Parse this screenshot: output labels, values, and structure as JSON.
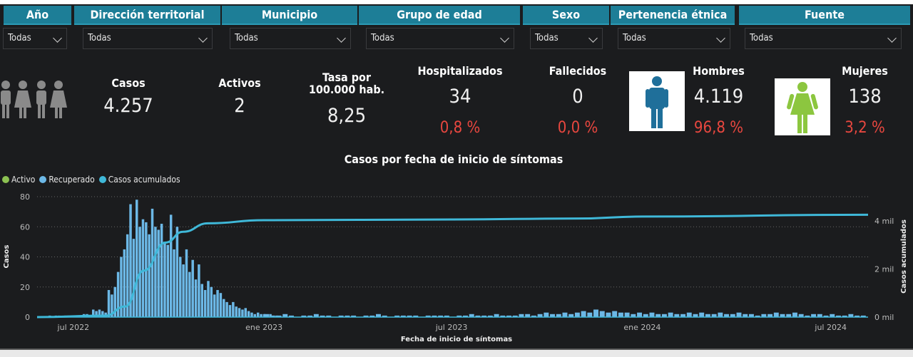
{
  "filters": [
    {
      "label": "Año",
      "value": "Todas"
    },
    {
      "label": "Dirección territorial",
      "value": "Todas"
    },
    {
      "label": "Municipio",
      "value": "Todas"
    },
    {
      "label": "Grupo de edad",
      "value": "Todas"
    },
    {
      "label": "Sexo",
      "value": "Todas"
    },
    {
      "label": "Pertenencia étnica",
      "value": "Todas"
    },
    {
      "label": "Fuente",
      "value": "Todas"
    }
  ],
  "kpis": {
    "casos": {
      "label": "Casos",
      "value": "4.257"
    },
    "activos": {
      "label": "Activos",
      "value": "2"
    },
    "tasa": {
      "label": "Tasa por 100.000 hab.",
      "value": "8,25"
    },
    "hospitalizados": {
      "label": "Hospitalizados",
      "value": "34",
      "pct": "0,8 %"
    },
    "fallecidos": {
      "label": "Fallecidos",
      "value": "0",
      "pct": "0,0 %"
    },
    "hombres": {
      "label": "Hombres",
      "value": "4.119",
      "pct": "96,8 %"
    },
    "mujeres": {
      "label": "Mujeres",
      "value": "138",
      "pct": "3,2 %"
    }
  },
  "colors": {
    "header": "#1d7e97",
    "activo": "#8cc152",
    "recuperado": "#6cb8e6",
    "acumulados": "#3fb8d8",
    "pct": "#e8473f",
    "male": "#1f6f9a",
    "female": "#8cc63f"
  },
  "chart_data": {
    "type": "bar",
    "title": "Casos por fecha de inicio de síntomas",
    "xlabel": "Fecha de inicio de síntomas",
    "ylabel": "Casos",
    "y2label": "Casos acumulados",
    "ylim": [
      0,
      80
    ],
    "yticks": [
      "0",
      "20",
      "40",
      "60",
      "80"
    ],
    "y2lim": [
      0,
      5000
    ],
    "y2ticks": [
      "0 mil",
      "2 mil",
      "4 mil"
    ],
    "xrange": [
      "2022-05-27",
      "2024-08-06"
    ],
    "xticks": [
      {
        "date": "2022-07-01",
        "label": "jul 2022"
      },
      {
        "date": "2023-01-01",
        "label": "ene 2023"
      },
      {
        "date": "2023-07-01",
        "label": "jul 2023"
      },
      {
        "date": "2024-01-01",
        "label": "ene 2024"
      },
      {
        "date": "2024-07-01",
        "label": "jul 2024"
      }
    ],
    "legend": [
      "Activo",
      "Recuperado",
      "Casos acumulados"
    ],
    "legend_position": "top-left",
    "grid": true,
    "recuperado": {
      "start": "2022-06-01",
      "step_days": 3,
      "values": [
        0,
        0,
        1,
        0,
        1,
        1,
        0,
        1,
        1,
        1,
        1,
        1,
        1,
        2,
        2,
        1,
        5,
        4,
        5,
        4,
        3,
        18,
        15,
        20,
        30,
        40,
        45,
        55,
        75,
        52,
        78,
        60,
        65,
        63,
        55,
        72,
        60,
        58,
        62,
        50,
        48,
        68,
        45,
        60,
        40,
        35,
        45,
        30,
        38,
        25,
        35,
        22,
        18,
        24,
        20,
        15,
        18,
        16,
        12,
        10,
        8,
        10,
        7,
        6,
        5,
        6,
        4,
        3,
        2,
        3,
        2,
        2,
        1,
        2,
        1,
        1
      ]
    },
    "recuperado_tail": {
      "start": "2023-01-01",
      "step_days": 6,
      "values": [
        2,
        1,
        1,
        2,
        1,
        0,
        1,
        1,
        2,
        1,
        1,
        0,
        1,
        1,
        1,
        0,
        1,
        1,
        2,
        1,
        0,
        1,
        1,
        1,
        1,
        0,
        1,
        1,
        1,
        1,
        0,
        1,
        1,
        2,
        1,
        1,
        1,
        2,
        1,
        1,
        1,
        2,
        2,
        1,
        2,
        3,
        2,
        2,
        3,
        2,
        3,
        4,
        3,
        5,
        4,
        3,
        4,
        3,
        3,
        2,
        3,
        2,
        3,
        2,
        2,
        3,
        2,
        2,
        3,
        2,
        3,
        2,
        2,
        3,
        2,
        2,
        3,
        2,
        2,
        1,
        2,
        2,
        3,
        2,
        2,
        3,
        2,
        1,
        2,
        2,
        1,
        2,
        1,
        1,
        2,
        1,
        1
      ]
    },
    "acumulados": [
      {
        "date": "2022-05-27",
        "value": 0
      },
      {
        "date": "2022-08-01",
        "value": 60
      },
      {
        "date": "2022-08-20",
        "value": 440
      },
      {
        "date": "2022-09-07",
        "value": 1930
      },
      {
        "date": "2022-09-28",
        "value": 3100
      },
      {
        "date": "2022-10-15",
        "value": 3550
      },
      {
        "date": "2022-11-08",
        "value": 3900
      },
      {
        "date": "2023-01-01",
        "value": 4030
      },
      {
        "date": "2023-07-01",
        "value": 4060
      },
      {
        "date": "2023-11-01",
        "value": 4100
      },
      {
        "date": "2024-01-01",
        "value": 4180
      },
      {
        "date": "2024-08-06",
        "value": 4257
      }
    ]
  }
}
